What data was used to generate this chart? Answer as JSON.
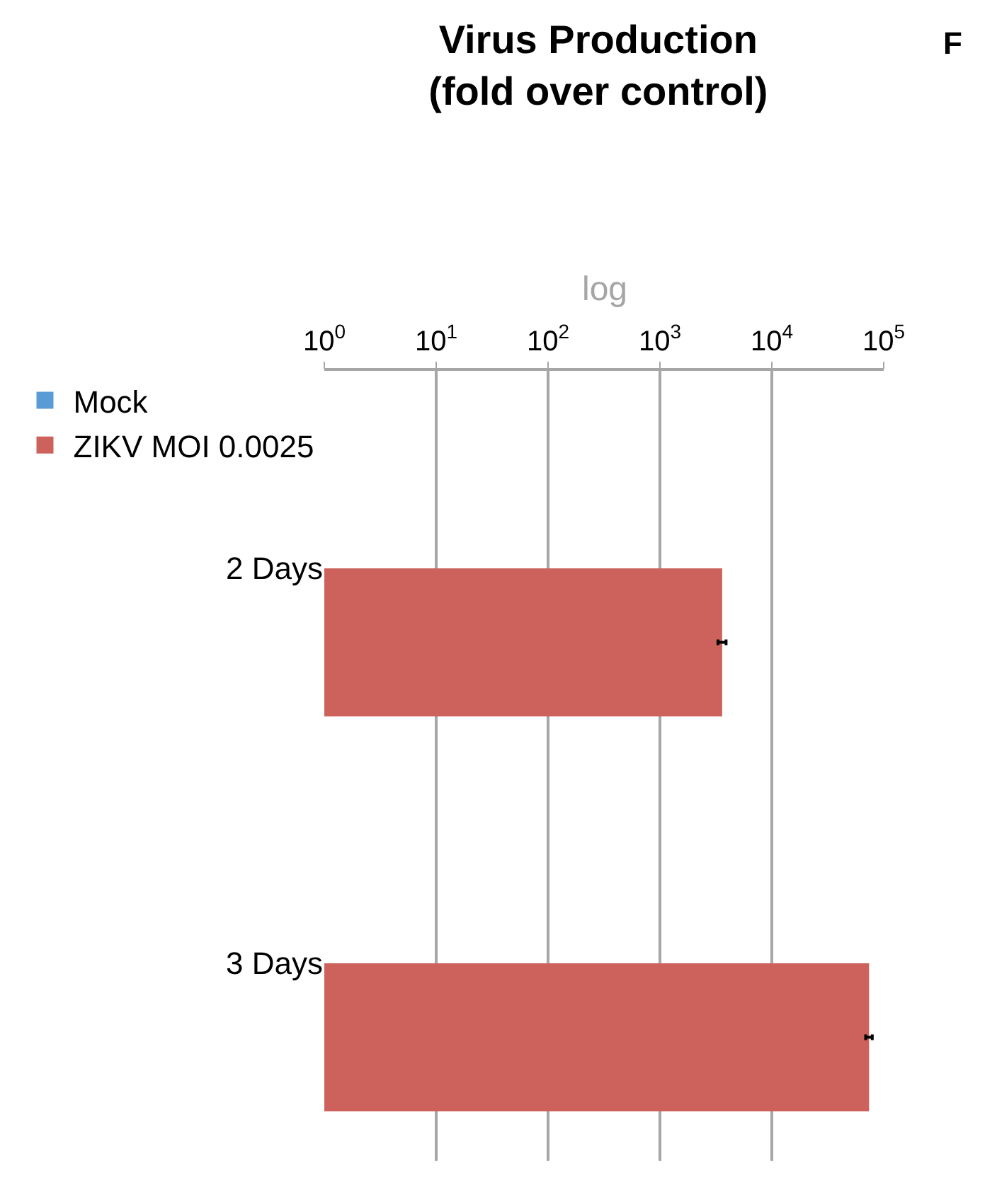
{
  "chart_data": {
    "type": "bar",
    "orientation": "horizontal",
    "title": "Virus Production\n(fold over control)",
    "subtitle": "log",
    "annotations": [
      "F"
    ],
    "categories": [
      "2 Days",
      "3 Days"
    ],
    "series": [
      {
        "name": "Mock",
        "color": "#5b9bd5",
        "values": [
          null,
          null
        ]
      },
      {
        "name": "ZIKV MOI 0.0025",
        "color": "#cd625c",
        "values": [
          3600,
          74000
        ],
        "errors": [
          300,
          5000
        ]
      }
    ],
    "log": "x",
    "xlim": [
      1,
      100000
    ],
    "xticks": [
      {
        "value": 1,
        "label": "10$^{0}$"
      },
      {
        "value": 10,
        "label": "10$^{1}$"
      },
      {
        "value": 100,
        "label": "10$^{2}$"
      },
      {
        "value": 1000,
        "label": "10$^{3}$"
      },
      {
        "value": 10000,
        "label": "10$^{4}$"
      },
      {
        "value": 100000,
        "label": "10$^{5}$"
      }
    ],
    "grid": "x",
    "legend": "left"
  }
}
